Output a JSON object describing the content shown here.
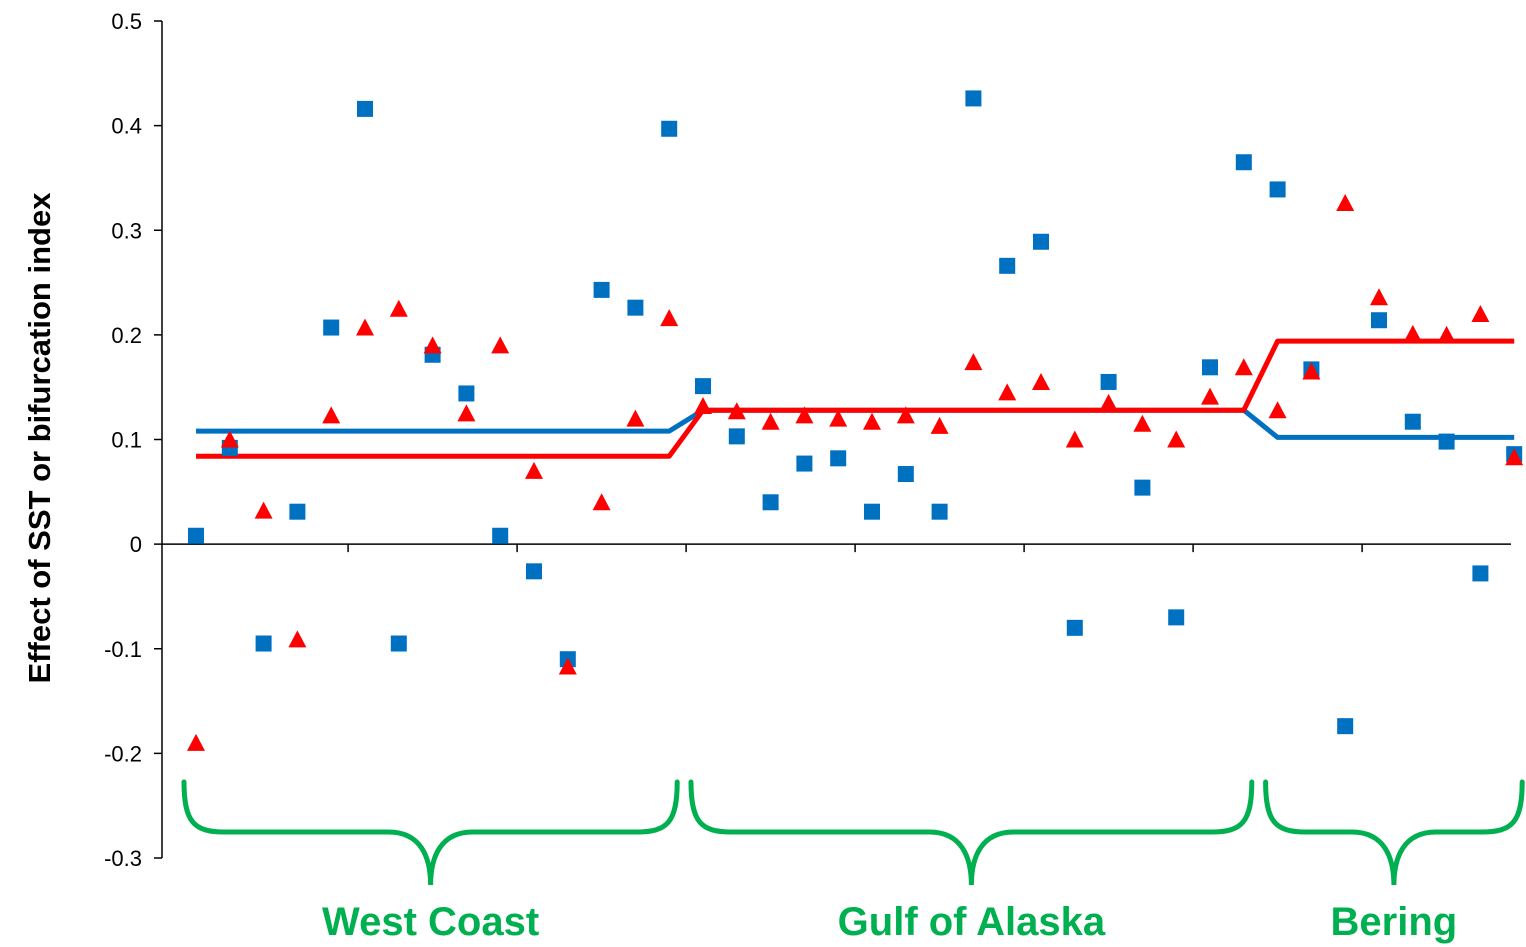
{
  "chart_data": {
    "type": "scatter",
    "ylabel": "Effect of SST or bifurcation index",
    "ylim": [
      -0.3,
      0.5
    ],
    "y_ticks": [
      -0.3,
      -0.2,
      -0.1,
      0,
      0.1,
      0.2,
      0.3,
      0.4,
      0.5
    ],
    "y_tick_labels": [
      "-0.3",
      "-0.2",
      "-0.1",
      "0",
      "0.1",
      "0.2",
      "0.3",
      "0.4",
      "0.5"
    ],
    "xlim": [
      0.5,
      40.5
    ],
    "x_ticks": [
      5.5,
      10.5,
      15.5,
      20.5,
      25.5,
      30.5,
      35.5,
      40.5
    ],
    "grid": false,
    "legend": "none",
    "series": [
      {
        "marker": "square",
        "color": "#0070C0",
        "x": [
          1,
          2,
          3,
          4,
          5,
          6,
          7,
          8,
          9,
          10,
          11,
          12,
          13,
          14,
          15,
          16,
          17,
          18,
          19,
          20,
          21,
          22,
          23,
          24,
          25,
          26,
          27,
          28,
          29,
          30,
          31,
          32,
          33,
          34,
          35,
          36,
          37,
          38,
          39,
          40
        ],
        "values": [
          0.008,
          0.092,
          -0.095,
          0.031,
          0.207,
          0.416,
          -0.095,
          0.181,
          0.144,
          0.008,
          -0.026,
          -0.11,
          0.243,
          0.226,
          0.397,
          0.151,
          0.103,
          0.04,
          0.077,
          0.082,
          0.031,
          0.067,
          0.031,
          0.426,
          0.266,
          0.289,
          -0.08,
          0.155,
          0.054,
          -0.07,
          0.169,
          0.365,
          0.339,
          0.167,
          -0.174,
          0.214,
          0.117,
          0.098,
          -0.028,
          0.086
        ]
      },
      {
        "marker": "triangle",
        "color": "#FF0000",
        "x": [
          1,
          2,
          3,
          4,
          5,
          6,
          7,
          8,
          9,
          10,
          11,
          12,
          13,
          14,
          15,
          16,
          17,
          18,
          19,
          20,
          21,
          22,
          23,
          24,
          25,
          26,
          27,
          28,
          29,
          30,
          31,
          32,
          33,
          34,
          35,
          36,
          37,
          38,
          39,
          40
        ],
        "values": [
          -0.19,
          0.1,
          0.032,
          -0.091,
          0.123,
          0.207,
          0.225,
          0.19,
          0.125,
          0.19,
          0.07,
          -0.117,
          0.04,
          0.12,
          0.216,
          0.132,
          0.127,
          0.117,
          0.123,
          0.12,
          0.117,
          0.123,
          0.113,
          0.174,
          0.145,
          0.155,
          0.1,
          0.135,
          0.115,
          0.1,
          0.141,
          0.169,
          0.128,
          0.165,
          0.326,
          0.236,
          0.201,
          0.2,
          0.22,
          0.083
        ]
      }
    ],
    "group_means": [
      {
        "color": "#0070C0",
        "segments": [
          {
            "x_start": 1,
            "x_end": 15,
            "value": 0.108
          },
          {
            "x_start": 16,
            "x_end": 32,
            "value": 0.128
          },
          {
            "x_start": 33,
            "x_end": 40,
            "value": 0.102
          }
        ]
      },
      {
        "color": "#FF0000",
        "segments": [
          {
            "x_start": 1,
            "x_end": 15,
            "value": 0.084
          },
          {
            "x_start": 16,
            "x_end": 32,
            "value": 0.128
          },
          {
            "x_start": 33,
            "x_end": 40,
            "value": 0.194
          }
        ]
      }
    ],
    "regions": [
      {
        "label": "West Coast",
        "x_start": 1,
        "x_end": 15
      },
      {
        "label": "Gulf of Alaska",
        "x_start": 16,
        "x_end": 32
      },
      {
        "label": "Bering",
        "x_start": 33,
        "x_end": 40
      }
    ],
    "region_color": "#00B050"
  }
}
